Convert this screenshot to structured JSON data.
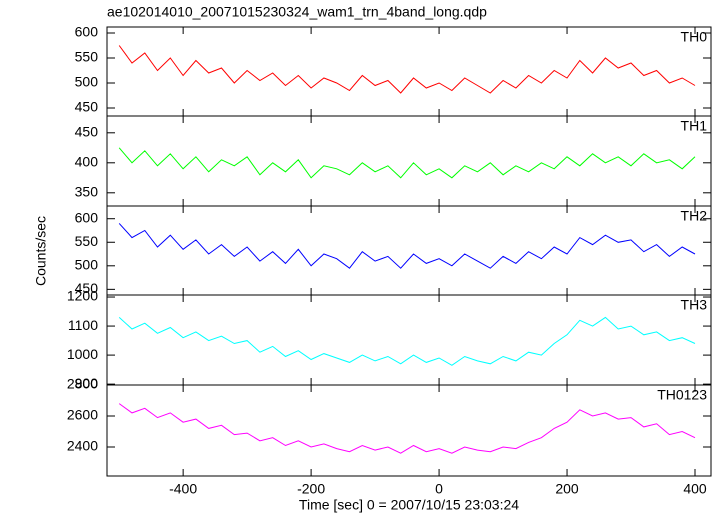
{
  "title": "ae102014010_20071015230324_wam1_trn_4band_long.qdp",
  "xlabel": "Time [sec] 0 = 2007/10/15 23:03:24",
  "ylabel": "Counts/sec",
  "chart_data": [
    {
      "type": "line",
      "xlim": [
        -519,
        425
      ],
      "xticks": [
        -400,
        -200,
        0,
        200,
        400
      ],
      "ylim": [
        434,
        612
      ],
      "yticks": [
        450,
        500,
        550,
        600
      ],
      "x": [
        -500,
        -480,
        -460,
        -440,
        -420,
        -400,
        -380,
        -360,
        -340,
        -320,
        -300,
        -280,
        -260,
        -240,
        -220,
        -200,
        -180,
        -160,
        -140,
        -120,
        -100,
        -80,
        -60,
        -40,
        -20,
        0,
        20,
        40,
        60,
        80,
        100,
        120,
        140,
        160,
        180,
        200,
        220,
        240,
        260,
        280,
        300,
        320,
        340,
        360,
        380,
        400
      ],
      "series": [
        {
          "name": "TH0",
          "color": "#ff0000",
          "values": [
            575,
            540,
            560,
            525,
            550,
            515,
            545,
            520,
            530,
            500,
            525,
            505,
            520,
            495,
            515,
            490,
            510,
            500,
            485,
            515,
            495,
            505,
            480,
            510,
            490,
            500,
            485,
            510,
            495,
            480,
            505,
            490,
            515,
            500,
            525,
            510,
            545,
            520,
            550,
            530,
            540,
            515,
            525,
            500,
            510,
            495
          ]
        }
      ]
    },
    {
      "type": "line",
      "xlim": [
        -519,
        425
      ],
      "xticks": [
        -400,
        -200,
        0,
        200,
        400
      ],
      "ylim": [
        328,
        478
      ],
      "yticks": [
        350,
        400,
        450
      ],
      "x": [
        -500,
        -480,
        -460,
        -440,
        -420,
        -400,
        -380,
        -360,
        -340,
        -320,
        -300,
        -280,
        -260,
        -240,
        -220,
        -200,
        -180,
        -160,
        -140,
        -120,
        -100,
        -80,
        -60,
        -40,
        -20,
        0,
        20,
        40,
        60,
        80,
        100,
        120,
        140,
        160,
        180,
        200,
        220,
        240,
        260,
        280,
        300,
        320,
        340,
        360,
        380,
        400
      ],
      "series": [
        {
          "name": "TH1",
          "color": "#00ff00",
          "values": [
            425,
            400,
            420,
            395,
            415,
            390,
            410,
            385,
            405,
            395,
            410,
            380,
            400,
            385,
            405,
            375,
            395,
            390,
            380,
            400,
            385,
            395,
            375,
            400,
            380,
            390,
            375,
            395,
            385,
            400,
            380,
            395,
            385,
            400,
            390,
            410,
            395,
            415,
            400,
            410,
            395,
            415,
            400,
            405,
            390,
            410
          ]
        }
      ]
    },
    {
      "type": "line",
      "xlim": [
        -519,
        425
      ],
      "xticks": [
        -400,
        -200,
        0,
        200,
        400
      ],
      "ylim": [
        438,
        627
      ],
      "yticks": [
        450,
        500,
        550,
        600
      ],
      "x": [
        -500,
        -480,
        -460,
        -440,
        -420,
        -400,
        -380,
        -360,
        -340,
        -320,
        -300,
        -280,
        -260,
        -240,
        -220,
        -200,
        -180,
        -160,
        -140,
        -120,
        -100,
        -80,
        -60,
        -40,
        -20,
        0,
        20,
        40,
        60,
        80,
        100,
        120,
        140,
        160,
        180,
        200,
        220,
        240,
        260,
        280,
        300,
        320,
        340,
        360,
        380,
        400
      ],
      "series": [
        {
          "name": "TH2",
          "color": "#0000ff",
          "values": [
            590,
            560,
            575,
            540,
            565,
            535,
            555,
            525,
            545,
            520,
            540,
            510,
            530,
            505,
            535,
            500,
            525,
            515,
            495,
            530,
            510,
            520,
            495,
            525,
            505,
            515,
            500,
            525,
            510,
            495,
            520,
            505,
            530,
            515,
            540,
            525,
            560,
            545,
            565,
            550,
            555,
            530,
            545,
            520,
            540,
            525
          ]
        }
      ]
    },
    {
      "type": "line",
      "xlim": [
        -519,
        425
      ],
      "xticks": [
        -400,
        -200,
        0,
        200,
        400
      ],
      "ylim": [
        897,
        1207
      ],
      "yticks": [
        900,
        1000,
        1100,
        1200
      ],
      "x": [
        -500,
        -480,
        -460,
        -440,
        -420,
        -400,
        -380,
        -360,
        -340,
        -320,
        -300,
        -280,
        -260,
        -240,
        -220,
        -200,
        -180,
        -160,
        -140,
        -120,
        -100,
        -80,
        -60,
        -40,
        -20,
        0,
        20,
        40,
        60,
        80,
        100,
        120,
        140,
        160,
        180,
        200,
        220,
        240,
        260,
        280,
        300,
        320,
        340,
        360,
        380,
        400
      ],
      "series": [
        {
          "name": "TH3",
          "color": "#00ffff",
          "values": [
            1130,
            1090,
            1110,
            1075,
            1095,
            1060,
            1080,
            1050,
            1065,
            1040,
            1050,
            1010,
            1030,
            995,
            1015,
            985,
            1005,
            990,
            975,
            1000,
            980,
            995,
            970,
            1000,
            975,
            990,
            965,
            995,
            980,
            970,
            995,
            980,
            1010,
            1000,
            1040,
            1070,
            1120,
            1100,
            1130,
            1090,
            1100,
            1070,
            1080,
            1050,
            1060,
            1040
          ]
        }
      ]
    },
    {
      "type": "line",
      "xlim": [
        -519,
        425
      ],
      "xticks": [
        -400,
        -200,
        0,
        200,
        400
      ],
      "ylim": [
        2213,
        2800
      ],
      "yticks": [
        2400,
        2600,
        2800
      ],
      "x": [
        -500,
        -480,
        -460,
        -440,
        -420,
        -400,
        -380,
        -360,
        -340,
        -320,
        -300,
        -280,
        -260,
        -240,
        -220,
        -200,
        -180,
        -160,
        -140,
        -120,
        -100,
        -80,
        -60,
        -40,
        -20,
        0,
        20,
        40,
        60,
        80,
        100,
        120,
        140,
        160,
        180,
        200,
        220,
        240,
        260,
        280,
        300,
        320,
        340,
        360,
        380,
        400
      ],
      "series": [
        {
          "name": "TH0123",
          "color": "#ff00ff",
          "values": [
            2680,
            2620,
            2650,
            2590,
            2620,
            2560,
            2580,
            2520,
            2540,
            2480,
            2490,
            2440,
            2460,
            2410,
            2440,
            2400,
            2420,
            2390,
            2370,
            2410,
            2380,
            2400,
            2360,
            2410,
            2370,
            2390,
            2360,
            2400,
            2380,
            2370,
            2400,
            2390,
            2430,
            2460,
            2520,
            2560,
            2640,
            2600,
            2620,
            2580,
            2590,
            2530,
            2550,
            2480,
            2500,
            2460
          ]
        }
      ]
    }
  ]
}
